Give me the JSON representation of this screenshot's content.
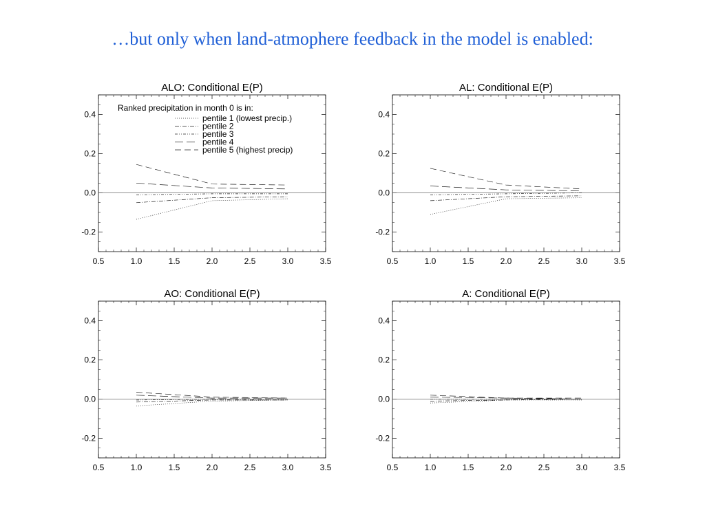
{
  "page": {
    "title": "…but only when land-atmophere feedback in the model is enabled:"
  },
  "legend": {
    "heading": "Ranked precipitation in month 0 is in:",
    "entries": [
      "pentile 1 (lowest precip.)",
      "pentile 2",
      "pentile 3",
      "pentile 4",
      "pentile 5 (highest precip)"
    ]
  },
  "chart_data": [
    {
      "type": "line",
      "title": "ALO: Conditional E(P)",
      "xlabel": "",
      "ylabel": "",
      "xlim": [
        0.5,
        3.5
      ],
      "ylim": [
        -0.3,
        0.5
      ],
      "xticks": [
        "0.5",
        "1.0",
        "1.5",
        "2.0",
        "2.5",
        "3.0",
        "3.5"
      ],
      "yticks": [
        "0.4",
        "0.2",
        "0.0",
        "-0.2"
      ],
      "x": [
        1.0,
        2.0,
        3.0
      ],
      "series": [
        {
          "name": "pentile 1 (lowest precip.)",
          "values": [
            -0.135,
            -0.04,
            -0.03
          ]
        },
        {
          "name": "pentile 2",
          "values": [
            -0.05,
            -0.025,
            -0.02
          ]
        },
        {
          "name": "pentile 3",
          "values": [
            -0.01,
            -0.005,
            -0.005
          ]
        },
        {
          "name": "pentile 4",
          "values": [
            0.05,
            0.025,
            0.02
          ]
        },
        {
          "name": "pentile 5 (highest precip)",
          "values": [
            0.145,
            0.045,
            0.04
          ]
        }
      ]
    },
    {
      "type": "line",
      "title": "AL: Conditional E(P)",
      "xlabel": "",
      "ylabel": "",
      "xlim": [
        0.5,
        3.5
      ],
      "ylim": [
        -0.3,
        0.5
      ],
      "xticks": [
        "0.5",
        "1.0",
        "1.5",
        "2.0",
        "2.5",
        "3.0",
        "3.5"
      ],
      "yticks": [
        "0.4",
        "0.2",
        "0.0",
        "-0.2"
      ],
      "x": [
        1.0,
        2.0,
        3.0
      ],
      "series": [
        {
          "name": "pentile 1 (lowest precip.)",
          "values": [
            -0.11,
            -0.03,
            -0.025
          ]
        },
        {
          "name": "pentile 2",
          "values": [
            -0.04,
            -0.02,
            -0.015
          ]
        },
        {
          "name": "pentile 3",
          "values": [
            -0.01,
            -0.005,
            0.0
          ]
        },
        {
          "name": "pentile 4",
          "values": [
            0.035,
            0.015,
            0.01
          ]
        },
        {
          "name": "pentile 5 (highest precip)",
          "values": [
            0.125,
            0.04,
            0.02
          ]
        }
      ]
    },
    {
      "type": "line",
      "title": "AO: Conditional E(P)",
      "xlabel": "",
      "ylabel": "",
      "xlim": [
        0.5,
        3.5
      ],
      "ylim": [
        -0.3,
        0.5
      ],
      "xticks": [
        "0.5",
        "1.0",
        "1.5",
        "2.0",
        "2.5",
        "3.0",
        "3.5"
      ],
      "yticks": [
        "0.4",
        "0.2",
        "0.0",
        "-0.2"
      ],
      "x": [
        1.0,
        2.0,
        3.0
      ],
      "series": [
        {
          "name": "pentile 1 (lowest precip.)",
          "values": [
            -0.035,
            -0.01,
            -0.005
          ]
        },
        {
          "name": "pentile 2",
          "values": [
            -0.015,
            -0.005,
            -0.005
          ]
        },
        {
          "name": "pentile 3",
          "values": [
            -0.005,
            0.0,
            0.0
          ]
        },
        {
          "name": "pentile 4",
          "values": [
            0.02,
            0.005,
            0.005
          ]
        },
        {
          "name": "pentile 5 (highest precip)",
          "values": [
            0.035,
            0.01,
            0.005
          ]
        }
      ]
    },
    {
      "type": "line",
      "title": "A: Conditional E(P)",
      "xlabel": "",
      "ylabel": "",
      "xlim": [
        0.5,
        3.5
      ],
      "ylim": [
        -0.3,
        0.5
      ],
      "xticks": [
        "0.5",
        "1.0",
        "1.5",
        "2.0",
        "2.5",
        "3.0",
        "3.5"
      ],
      "yticks": [
        "0.4",
        "0.2",
        "0.0",
        "-0.2"
      ],
      "x": [
        1.0,
        2.0,
        3.0
      ],
      "series": [
        {
          "name": "pentile 1 (lowest precip.)",
          "values": [
            -0.02,
            -0.005,
            -0.005
          ]
        },
        {
          "name": "pentile 2",
          "values": [
            -0.01,
            -0.005,
            0.0
          ]
        },
        {
          "name": "pentile 3",
          "values": [
            0.0,
            0.0,
            0.0
          ]
        },
        {
          "name": "pentile 4",
          "values": [
            0.01,
            0.005,
            0.0
          ]
        },
        {
          "name": "pentile 5 (highest precip)",
          "values": [
            0.02,
            0.005,
            0.005
          ]
        }
      ]
    }
  ]
}
